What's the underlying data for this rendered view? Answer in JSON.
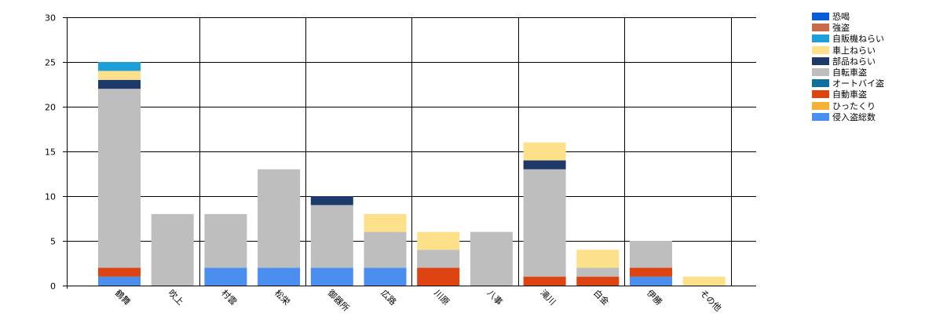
{
  "chart_data": {
    "type": "bar",
    "stacked": true,
    "categories": [
      "鶴舞",
      "吹上",
      "村雲",
      "松栄",
      "御器所",
      "広路",
      "川原",
      "八事",
      "滝川",
      "白金",
      "伊勝",
      "その他"
    ],
    "ylim": [
      0,
      30
    ],
    "yticks": [
      0,
      5,
      10,
      15,
      20,
      25,
      30
    ],
    "grid": true,
    "legend_position": "right",
    "series": [
      {
        "name": "侵入盗総数",
        "color": "#4a8ff0",
        "values": [
          1,
          0,
          2,
          2,
          2,
          2,
          0,
          0,
          0,
          0,
          1,
          0
        ]
      },
      {
        "name": "ひったくり",
        "color": "#f5b135",
        "values": [
          0,
          0,
          0,
          0,
          0,
          0,
          0,
          0,
          0,
          0,
          0,
          0
        ]
      },
      {
        "name": "自動車盗",
        "color": "#dd4411",
        "values": [
          1,
          0,
          0,
          0,
          0,
          0,
          2,
          0,
          1,
          1,
          1,
          0
        ]
      },
      {
        "name": "オートバイ盗",
        "color": "#116fa0",
        "values": [
          0,
          0,
          0,
          0,
          0,
          0,
          0,
          0,
          0,
          0,
          0,
          0
        ]
      },
      {
        "name": "自転車盗",
        "color": "#bebebe",
        "values": [
          20,
          8,
          6,
          11,
          7,
          4,
          2,
          6,
          12,
          1,
          3,
          0
        ]
      },
      {
        "name": "部品ねらい",
        "color": "#1e3a6b",
        "values": [
          1,
          0,
          0,
          0,
          1,
          0,
          0,
          0,
          1,
          0,
          0,
          0
        ]
      },
      {
        "name": "車上ねらい",
        "color": "#fde18a",
        "values": [
          1,
          0,
          0,
          0,
          0,
          2,
          2,
          0,
          2,
          2,
          0,
          1
        ]
      },
      {
        "name": "自販機ねらい",
        "color": "#1e9fd8",
        "values": [
          1,
          0,
          0,
          0,
          0,
          0,
          0,
          0,
          0,
          0,
          0,
          0
        ]
      },
      {
        "name": "強盗",
        "color": "#c96a4a",
        "values": [
          0,
          0,
          0,
          0,
          0,
          0,
          0,
          0,
          0,
          0,
          0,
          0
        ]
      },
      {
        "name": "恐喝",
        "color": "#0a5dd6",
        "values": [
          0,
          0,
          0,
          0,
          0,
          0,
          0,
          0,
          0,
          0,
          0,
          0
        ]
      }
    ],
    "legend_order": [
      "恐喝",
      "強盗",
      "自販機ねらい",
      "車上ねらい",
      "部品ねらい",
      "自転車盗",
      "オートバイ盗",
      "自動車盗",
      "ひったくり",
      "侵入盗総数"
    ]
  }
}
